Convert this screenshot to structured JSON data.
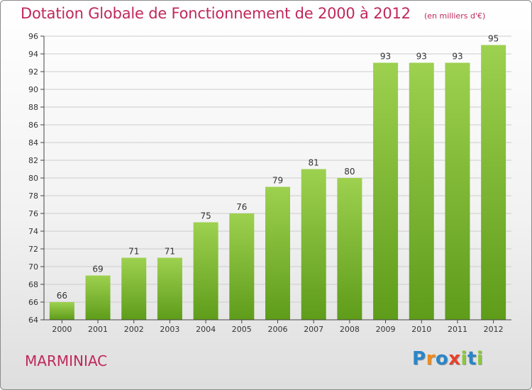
{
  "colors": {
    "title": "#c0285a",
    "bar_light": "#9dd14f",
    "bar_dark": "#5e9c1a",
    "grid": "#cccccc",
    "axis": "#444444"
  },
  "header": {
    "title": "Dotation Globale de Fonctionnement de 2000 à 2012",
    "subtitle": "(en milliers d'€)"
  },
  "footer": {
    "town": "MARMINIAC",
    "logo_text": "Proxiti",
    "logo_letters": [
      {
        "char": "P",
        "color": "#2a86c8"
      },
      {
        "char": "r",
        "color": "#f08a1c"
      },
      {
        "char": "o",
        "color": "#2a86c8"
      },
      {
        "char": "x",
        "color": "#e8402a"
      },
      {
        "char": "i",
        "color": "#8cc63e"
      },
      {
        "char": "t",
        "color": "#2a86c8"
      },
      {
        "char": "i",
        "color": "#8cc63e"
      }
    ]
  },
  "chart_data": {
    "type": "bar",
    "title": "Dotation Globale de Fonctionnement de 2000 à 2012",
    "subtitle": "(en milliers d'€)",
    "categories": [
      "2000",
      "2001",
      "2002",
      "2003",
      "2004",
      "2005",
      "2006",
      "2007",
      "2008",
      "2009",
      "2010",
      "2011",
      "2012"
    ],
    "values": [
      66,
      69,
      71,
      71,
      75,
      76,
      79,
      81,
      80,
      93,
      93,
      93,
      95
    ],
    "ylim": [
      64,
      96
    ],
    "yticks": [
      64,
      66,
      68,
      70,
      72,
      74,
      76,
      78,
      80,
      82,
      84,
      86,
      88,
      90,
      92,
      94,
      96
    ],
    "grid": true,
    "data_labels": true
  }
}
